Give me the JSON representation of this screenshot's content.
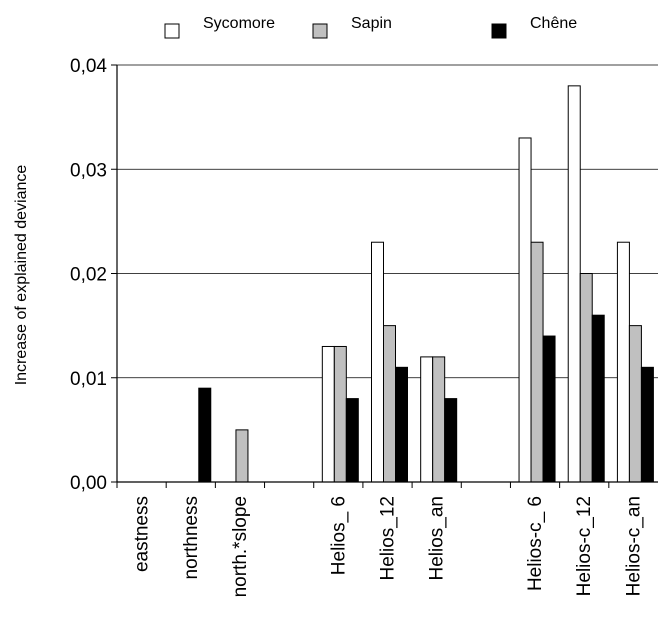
{
  "chart_data": {
    "type": "bar",
    "ylabel": "Increase of explained deviance",
    "xlabel": "",
    "ylim": [
      0,
      0.04
    ],
    "yticks": [
      "0,00",
      "0,01",
      "0,02",
      "0,03",
      "0,04"
    ],
    "grid": true,
    "legend_position": "top",
    "categories": [
      "eastness",
      "northness",
      "north.*slope",
      "",
      "Helios_ 6",
      "Helios_12",
      "Helios_an",
      "",
      "Helios-c_ 6",
      "Helios-c_12",
      "Helios-c_an"
    ],
    "series": [
      {
        "name": "Sycomore",
        "color": "#ffffff",
        "values": [
          0,
          0,
          0,
          null,
          0.013,
          0.023,
          0.012,
          null,
          0.033,
          0.038,
          0.023
        ]
      },
      {
        "name": "Sapin",
        "color": "#c0c0c0",
        "values": [
          0,
          0,
          0.005,
          null,
          0.013,
          0.015,
          0.012,
          null,
          0.023,
          0.02,
          0.015
        ]
      },
      {
        "name": "Chêne",
        "color": "#000000",
        "values": [
          0,
          0.009,
          0,
          null,
          0.008,
          0.011,
          0.008,
          null,
          0.014,
          0.016,
          0.011
        ]
      }
    ]
  }
}
